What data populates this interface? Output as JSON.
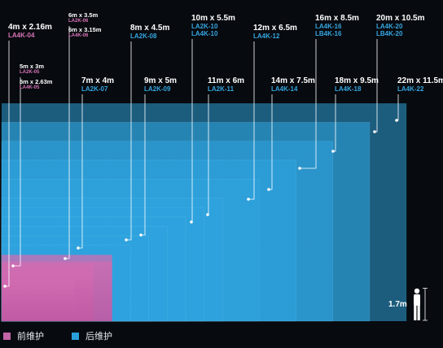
{
  "colors": {
    "background": "#070a0f",
    "front_maintenance": "#c364a6",
    "rear_maintenance": "#2aa0db",
    "model_label_front": "#d874b6",
    "model_label_rear": "#35a6e0"
  },
  "screens": [
    {
      "size": "4m x 2.16m",
      "models": [
        "LA4K-04"
      ],
      "type": "front"
    },
    {
      "size": "5m x 3m",
      "models": [
        "LA2K-05"
      ],
      "type": "front"
    },
    {
      "size": "5m x 2.63m",
      "models": [
        "LA4K-05"
      ],
      "type": "front"
    },
    {
      "size": "6m x 3.5m",
      "models": [
        "LA2K-06"
      ],
      "type": "front"
    },
    {
      "size": "6m x 3.15m",
      "models": [
        "LA4K-06"
      ],
      "type": "front"
    },
    {
      "size": "7m x 4m",
      "models": [
        "LA2K-07"
      ],
      "type": "rear"
    },
    {
      "size": "8m x 4.5m",
      "models": [
        "LA2K-08"
      ],
      "type": "rear"
    },
    {
      "size": "9m x 5m",
      "models": [
        "LA2K-09"
      ],
      "type": "rear"
    },
    {
      "size": "10m x 5.5m",
      "models": [
        "LA2K-10",
        "LA4K-10"
      ],
      "type": "rear"
    },
    {
      "size": "11m x 6m",
      "models": [
        "LA2K-11"
      ],
      "type": "rear"
    },
    {
      "size": "12m x 6.5m",
      "models": [
        "LA4K-12"
      ],
      "type": "rear"
    },
    {
      "size": "14m x 7.5m",
      "models": [
        "LA4K-14"
      ],
      "type": "rear"
    },
    {
      "size": "16m x 8.5m",
      "models": [
        "LA4K-16",
        "LB4K-16"
      ],
      "type": "rear"
    },
    {
      "size": "18m x 9.5m",
      "models": [
        "LA4K-18"
      ],
      "type": "rear"
    },
    {
      "size": "20m x 10.5m",
      "models": [
        "LA4K-20",
        "LB4K-20"
      ],
      "type": "rear"
    },
    {
      "size": "22m x 11.5m",
      "models": [
        "LA4K-22"
      ],
      "type": "rear"
    }
  ],
  "human_scale": {
    "label": "1.7m",
    "height_m": 1.7
  },
  "legend": [
    {
      "label": "前维护",
      "color": "#c364a6"
    },
    {
      "label": "后维护",
      "color": "#2aa0db"
    }
  ]
}
